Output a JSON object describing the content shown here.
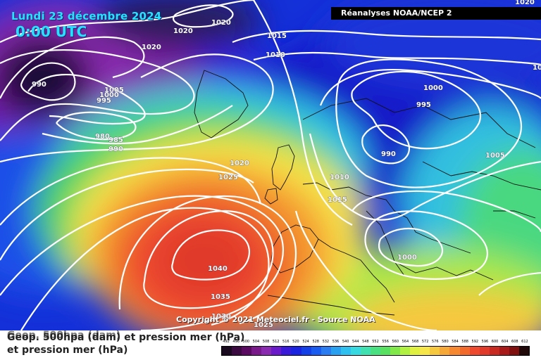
{
  "header": {
    "date": "Lundi 23 décembre 2024",
    "time": "0:00 UTC",
    "source": "Réanalyses NOAA/NCEP 2"
  },
  "map": {
    "isobar_labels": [
      "1020",
      "1020",
      "1020",
      "1015",
      "1010",
      "990",
      "1005",
      "1000",
      "995",
      "980",
      "985",
      "990",
      "1000",
      "995",
      "990",
      "1005",
      "1020",
      "1025",
      "1010",
      "1015",
      "1000",
      "1040",
      "1035",
      "1030",
      "1025",
      "1020",
      "10"
    ],
    "colors": {
      "low_core": "#1a0a3a",
      "trough": "#7a1fa6",
      "deep_blue": "#1430d8",
      "blue": "#2a6cf0",
      "cyan": "#39c8f0",
      "green": "#45d660",
      "yellow": "#f6e64a",
      "orange": "#f59c30",
      "red": "#ee4a30",
      "high_core": "#e03a2a",
      "isobar": "#ffffff",
      "coastline": "#111111"
    }
  },
  "copyright": "Copyright © 2021 Meteociel.fr - Source NOAA",
  "legend": {
    "line1": "Geop. 500hpa (dam) et pression mer (hPa)",
    "line1_shadow": "Geop. 500hpa (dam)",
    "line2": "et pression mer (hPa)",
    "scale_ticks": [
      "492",
      "496",
      "500",
      "504",
      "508",
      "512",
      "516",
      "520",
      "524",
      "528",
      "532",
      "536",
      "540",
      "544",
      "548",
      "552",
      "556",
      "560",
      "564",
      "568",
      "572",
      "576",
      "580",
      "584",
      "588",
      "592",
      "596",
      "600",
      "604",
      "608",
      "612"
    ],
    "scale_colors": [
      "#1a0a20",
      "#3a0a40",
      "#5a0a60",
      "#7a1a8a",
      "#8a2ab0",
      "#6a1ac8",
      "#3a1ad8",
      "#1a24e0",
      "#1440e8",
      "#1a5cf0",
      "#2a7cf0",
      "#2aa0f0",
      "#30c0f0",
      "#38d8e0",
      "#40e0b0",
      "#48e080",
      "#58e060",
      "#80e848",
      "#b0f040",
      "#e0f040",
      "#f6e64a",
      "#f6c840",
      "#f6a838",
      "#f58830",
      "#f26a2c",
      "#ee4a30",
      "#e03a2a",
      "#c82a22",
      "#a81a1a",
      "#801010",
      "#200808"
    ]
  }
}
